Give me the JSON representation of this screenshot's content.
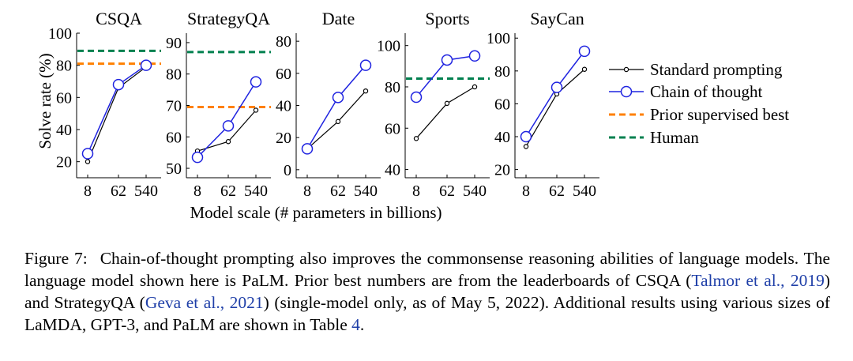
{
  "chart_data": {
    "type": "line",
    "categories": [
      "8",
      "62",
      "540"
    ],
    "xlabel": "Model scale (# parameters in billions)",
    "ylabel": "Solve rate (%)",
    "legend": {
      "position": "right",
      "entries": [
        "Standard prompting",
        "Chain of thought",
        "Prior supervised best",
        "Human"
      ]
    },
    "colors": {
      "standard": "#000000",
      "cot": "#1f23e0",
      "prior": "#ff8000",
      "human": "#00804f"
    },
    "panels": [
      {
        "title": "CSQA",
        "ylim": [
          10,
          100
        ],
        "yticks": [
          20,
          40,
          60,
          80,
          100
        ],
        "series": [
          {
            "name": "Standard prompting",
            "values": [
              20,
              66,
              79
            ]
          },
          {
            "name": "Chain of thought",
            "values": [
              25,
              68,
              80
            ]
          }
        ],
        "prior_best": 81,
        "human": 89
      },
      {
        "title": "StrategyQA",
        "ylim": [
          47,
          93
        ],
        "yticks": [
          50,
          60,
          70,
          80,
          90
        ],
        "series": [
          {
            "name": "Standard prompting",
            "values": [
              55.5,
              58.5,
              68.5
            ]
          },
          {
            "name": "Chain of thought",
            "values": [
              53.5,
              63.5,
              77.5
            ]
          }
        ],
        "prior_best": 69.5,
        "human": 87
      },
      {
        "title": "Date",
        "ylim": [
          -5,
          85
        ],
        "yticks": [
          0,
          20,
          40,
          60,
          80
        ],
        "series": [
          {
            "name": "Standard prompting",
            "values": [
              13,
              30,
              49
            ]
          },
          {
            "name": "Chain of thought",
            "values": [
              13,
              45,
              65
            ]
          }
        ]
      },
      {
        "title": "Sports",
        "ylim": [
          36,
          106
        ],
        "yticks": [
          40,
          60,
          80,
          100
        ],
        "series": [
          {
            "name": "Standard prompting",
            "values": [
              55,
              72,
              80
            ]
          },
          {
            "name": "Chain of thought",
            "values": [
              75,
              93,
              95
            ]
          }
        ],
        "human": 84
      },
      {
        "title": "SayCan",
        "ylim": [
          15,
          103
        ],
        "yticks": [
          20,
          40,
          60,
          80,
          100
        ],
        "series": [
          {
            "name": "Standard prompting",
            "values": [
              34,
              66,
              81
            ]
          },
          {
            "name": "Chain of thought",
            "values": [
              40,
              70,
              92
            ]
          }
        ]
      }
    ]
  },
  "caption": {
    "label": "Figure 7:",
    "t1": "Chain-of-thought prompting also improves the commonsense reasoning abilities of language models. The language model shown here is PaLM. Prior best numbers are from the leaderboards of CSQA (",
    "cite1": "Talmor et al., 2019",
    "t2": ") and StrategyQA (",
    "cite2": "Geva et al., 2021",
    "t3": ") (single-model only, as of May 5, 2022). Additional results using various sizes of LaMDA, GPT-3, and PaLM are shown in Table ",
    "table_ref": "4",
    "t4": "."
  }
}
